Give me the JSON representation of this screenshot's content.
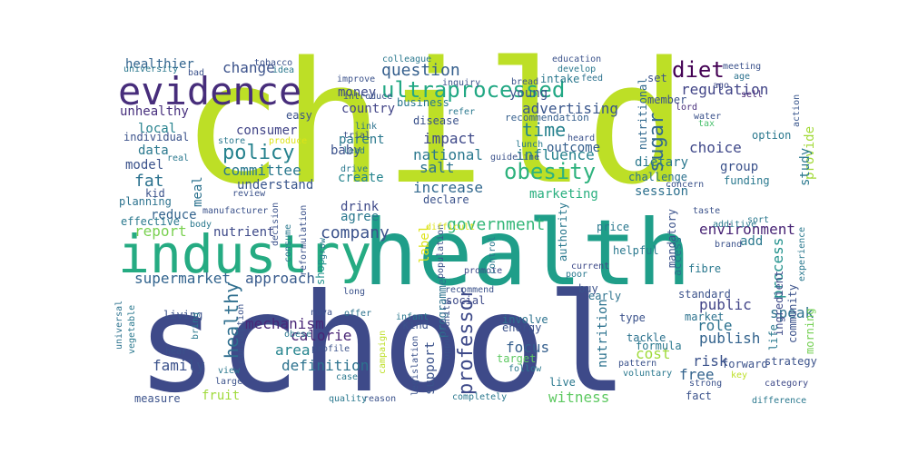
{
  "cloud": {
    "words": [
      {
        "text": "child",
        "color": "#bddf26"
      },
      {
        "text": "school",
        "color": "#3e4a89"
      },
      {
        "text": "health",
        "color": "#1f9e89"
      },
      {
        "text": "industry",
        "color": "#25ab82"
      },
      {
        "text": "evidence",
        "color": "#472d7b"
      },
      {
        "text": "ultraprocessed",
        "color": "#22a884"
      },
      {
        "text": "obesity",
        "color": "#2db27d"
      },
      {
        "text": "policy",
        "color": "#26828e"
      },
      {
        "text": "diet",
        "color": "#440154"
      },
      {
        "text": "sugar",
        "color": "#31688e"
      },
      {
        "text": "government",
        "color": "#35b779"
      },
      {
        "text": "company",
        "color": "#3b528b"
      },
      {
        "text": "question",
        "color": "#355f8d"
      },
      {
        "text": "time",
        "color": "#26828e"
      },
      {
        "text": "advertising",
        "color": "#39568c"
      },
      {
        "text": "healthy",
        "color": "#2e6e8e"
      },
      {
        "text": "professor",
        "color": "#3e4a89"
      },
      {
        "text": "environment",
        "color": "#482475"
      },
      {
        "text": "regulation",
        "color": "#414487"
      },
      {
        "text": "salt",
        "color": "#2c728e"
      },
      {
        "text": "change",
        "color": "#3b528b"
      },
      {
        "text": "committee",
        "color": "#2a788e"
      },
      {
        "text": "fat",
        "color": "#2c728e"
      },
      {
        "text": "report",
        "color": "#7ad151"
      },
      {
        "text": "supermarket",
        "color": "#32648e"
      },
      {
        "text": "approach",
        "color": "#375a8c"
      },
      {
        "text": "area",
        "color": "#25848e"
      },
      {
        "text": "calorie",
        "color": "#482475"
      },
      {
        "text": "definition",
        "color": "#2c728e"
      },
      {
        "text": "family",
        "color": "#3b528b"
      },
      {
        "text": "mechanism",
        "color": "#482677"
      },
      {
        "text": "influence",
        "color": "#26828e"
      },
      {
        "text": "national",
        "color": "#2a788e"
      },
      {
        "text": "increase",
        "color": "#31688e"
      },
      {
        "text": "marketing",
        "color": "#29af7f"
      },
      {
        "text": "impact",
        "color": "#3e4989"
      },
      {
        "text": "focus",
        "color": "#355f8d"
      },
      {
        "text": "support",
        "color": "#3b528b"
      },
      {
        "text": "nutrition",
        "color": "#2c728e"
      },
      {
        "text": "cost",
        "color": "#9fda3a"
      },
      {
        "text": "witness",
        "color": "#5ec962"
      },
      {
        "text": "risk",
        "color": "#3b528b"
      },
      {
        "text": "public",
        "color": "#414487"
      },
      {
        "text": "publish",
        "color": "#33638d"
      },
      {
        "text": "free",
        "color": "#33638d"
      },
      {
        "text": "role",
        "color": "#2c728e"
      },
      {
        "text": "speak",
        "color": "#2d708e"
      },
      {
        "text": "process",
        "color": "#21918c"
      },
      {
        "text": "provide",
        "color": "#a2da37"
      },
      {
        "text": "study",
        "color": "#2a788e"
      },
      {
        "text": "choice",
        "color": "#3f4889"
      },
      {
        "text": "group",
        "color": "#3b528b"
      },
      {
        "text": "session",
        "color": "#2d708e"
      },
      {
        "text": "dietary",
        "color": "#2a788e"
      },
      {
        "text": "outcome",
        "color": "#355f8d"
      },
      {
        "text": "young",
        "color": "#3b528b"
      },
      {
        "text": "money",
        "color": "#3e4a89"
      },
      {
        "text": "country",
        "color": "#414487"
      },
      {
        "text": "parent",
        "color": "#2a788e"
      },
      {
        "text": "create",
        "color": "#25848e"
      },
      {
        "text": "drink",
        "color": "#3e4a89"
      },
      {
        "text": "agree",
        "color": "#2a788e"
      },
      {
        "text": "understand",
        "color": "#39568c"
      },
      {
        "text": "consumer",
        "color": "#414487"
      },
      {
        "text": "nutrient",
        "color": "#3e4a89"
      },
      {
        "text": "reduce",
        "color": "#33638d"
      },
      {
        "text": "meal",
        "color": "#2c728e"
      },
      {
        "text": "data",
        "color": "#2a788e"
      },
      {
        "text": "model",
        "color": "#3b528b"
      },
      {
        "text": "local",
        "color": "#26828e"
      },
      {
        "text": "healthier",
        "color": "#32648e"
      },
      {
        "text": "unhealthy",
        "color": "#472f7d"
      },
      {
        "text": "baby",
        "color": "#3b528b"
      },
      {
        "text": "recommendation",
        "color": "#355f8d"
      },
      {
        "text": "member",
        "color": "#3b528b"
      },
      {
        "text": "set",
        "color": "#3b528b"
      },
      {
        "text": "nutritional",
        "color": "#31688e"
      },
      {
        "text": "challenge",
        "color": "#2c728e"
      },
      {
        "text": "funding",
        "color": "#2a788e"
      },
      {
        "text": "fruit",
        "color": "#9fda3a"
      },
      {
        "text": "add",
        "color": "#2a788e"
      },
      {
        "text": "shop",
        "color": "#21918c"
      },
      {
        "text": "label",
        "color": "#dde318"
      },
      {
        "text": "meeting",
        "color": "#3b528b"
      },
      {
        "text": "age",
        "color": "#2c728e"
      },
      {
        "text": "water",
        "color": "#3b528b"
      },
      {
        "text": "tax",
        "color": "#4ac16d"
      },
      {
        "text": "lord",
        "color": "#472d7b"
      },
      {
        "text": "sell",
        "color": "#482475"
      },
      {
        "text": "ago",
        "color": "#3e4a89"
      },
      {
        "text": "option",
        "color": "#2a788e"
      },
      {
        "text": "action",
        "color": "#39568c"
      },
      {
        "text": "taste",
        "color": "#3b528b"
      },
      {
        "text": "additive",
        "color": "#2a788e"
      },
      {
        "text": "sort",
        "color": "#2a788e"
      },
      {
        "text": "brand",
        "color": "#3b528b"
      },
      {
        "text": "experience",
        "color": "#2a788e"
      },
      {
        "text": "ingredient",
        "color": "#3e4a89"
      },
      {
        "text": "community",
        "color": "#3b528b"
      },
      {
        "text": "morning",
        "color": "#75d054"
      },
      {
        "text": "life",
        "color": "#2a788e"
      },
      {
        "text": "strategy",
        "color": "#3b528b"
      },
      {
        "text": "forward",
        "color": "#3b528b"
      },
      {
        "text": "category",
        "color": "#3e4a89"
      },
      {
        "text": "difference",
        "color": "#2a788e"
      },
      {
        "text": "key",
        "color": "#bddf26"
      },
      {
        "text": "market",
        "color": "#2c728e"
      },
      {
        "text": "formula",
        "color": "#2a788e"
      },
      {
        "text": "tackle",
        "color": "#2c728e"
      },
      {
        "text": "type",
        "color": "#3b528b"
      },
      {
        "text": "standard",
        "color": "#3b528b"
      },
      {
        "text": "fibre",
        "color": "#2a788e"
      },
      {
        "text": "access",
        "color": "#2c728e"
      },
      {
        "text": "mandatory",
        "color": "#3b528b"
      },
      {
        "text": "helpful",
        "color": "#2a788e"
      },
      {
        "text": "price",
        "color": "#2a788e"
      },
      {
        "text": "early",
        "color": "#2c728e"
      },
      {
        "text": "buy",
        "color": "#3b528b"
      },
      {
        "text": "authority",
        "color": "#2a788e"
      },
      {
        "text": "poor",
        "color": "#2a788e"
      },
      {
        "text": "current",
        "color": "#3e4a89"
      },
      {
        "text": "voluntary",
        "color": "#2a788e"
      },
      {
        "text": "pattern",
        "color": "#3b528b"
      },
      {
        "text": "strong",
        "color": "#3b528b"
      },
      {
        "text": "fact",
        "color": "#3b528b"
      },
      {
        "text": "live",
        "color": "#2a788e"
      },
      {
        "text": "energy",
        "color": "#3b528b"
      },
      {
        "text": "involve",
        "color": "#2c728e"
      },
      {
        "text": "target",
        "color": "#5ec962"
      },
      {
        "text": "follow",
        "color": "#2a788e"
      },
      {
        "text": "completely",
        "color": "#2a788e"
      },
      {
        "text": "social",
        "color": "#3e4a89"
      },
      {
        "text": "kind",
        "color": "#3b528b"
      },
      {
        "text": "infant",
        "color": "#2a788e"
      },
      {
        "text": "programme",
        "color": "#2c728e"
      },
      {
        "text": "opportunity",
        "color": "#3b528b"
      },
      {
        "text": "legislation",
        "color": "#3b528b"
      },
      {
        "text": "recommend",
        "color": "#3b528b"
      },
      {
        "text": "promote",
        "color": "#3e4a89"
      },
      {
        "text": "control",
        "color": "#2a788e"
      },
      {
        "text": "population",
        "color": "#3b528b"
      },
      {
        "text": "campaign",
        "color": "#bddf26"
      },
      {
        "text": "reason",
        "color": "#3b528b"
      },
      {
        "text": "quality",
        "color": "#2a788e"
      },
      {
        "text": "case",
        "color": "#2a788e"
      },
      {
        "text": "large",
        "color": "#3b528b"
      },
      {
        "text": "view",
        "color": "#2a788e"
      },
      {
        "text": "profile",
        "color": "#3b528b"
      },
      {
        "text": "obese",
        "color": "#2a788e"
      },
      {
        "text": "nova",
        "color": "#3b528b"
      },
      {
        "text": "offer",
        "color": "#2c728e"
      },
      {
        "text": "long",
        "color": "#3b528b"
      },
      {
        "text": "living",
        "color": "#3b528b"
      },
      {
        "text": "bring",
        "color": "#2a788e"
      },
      {
        "text": "consumption",
        "color": "#3b528b"
      },
      {
        "text": "hear",
        "color": "#3b528b"
      },
      {
        "text": "vegetable",
        "color": "#2a788e"
      },
      {
        "text": "universal",
        "color": "#2c728e"
      },
      {
        "text": "measure",
        "color": "#3b528b"
      },
      {
        "text": "effective",
        "color": "#2a788e"
      },
      {
        "text": "body",
        "color": "#2a788e"
      },
      {
        "text": "planning",
        "color": "#2c728e"
      },
      {
        "text": "kid",
        "color": "#3b528b"
      },
      {
        "text": "real",
        "color": "#2a788e"
      },
      {
        "text": "individual",
        "color": "#3b528b"
      },
      {
        "text": "store",
        "color": "#2a788e"
      },
      {
        "text": "produce",
        "color": "#dde318"
      },
      {
        "text": "review",
        "color": "#3b528b"
      },
      {
        "text": "manufacturer",
        "color": "#3b528b"
      },
      {
        "text": "decision",
        "color": "#3b528b"
      },
      {
        "text": "consume",
        "color": "#2a788e"
      },
      {
        "text": "grow",
        "color": "#2a788e"
      },
      {
        "text": "reformulation",
        "color": "#3b528b"
      },
      {
        "text": "drive",
        "color": "#2a788e"
      },
      {
        "text": "declare",
        "color": "#3b528b"
      },
      {
        "text": "lead",
        "color": "#2a788e"
      },
      {
        "text": "trial",
        "color": "#3b528b"
      },
      {
        "text": "link",
        "color": "#2c728e"
      },
      {
        "text": "difficult",
        "color": "#dde318"
      },
      {
        "text": "guideline",
        "color": "#3b528b"
      },
      {
        "text": "lunch",
        "color": "#2a788e"
      },
      {
        "text": "heard",
        "color": "#3b528b"
      },
      {
        "text": "concern",
        "color": "#3b528b"
      },
      {
        "text": "disease",
        "color": "#3b528b"
      },
      {
        "text": "easy",
        "color": "#3b528b"
      },
      {
        "text": "business",
        "color": "#2a788e"
      },
      {
        "text": "introduce",
        "color": "#3b528b"
      },
      {
        "text": "improve",
        "color": "#3b528b"
      },
      {
        "text": "colleague",
        "color": "#2a788e"
      },
      {
        "text": "inquiry",
        "color": "#3b528b"
      },
      {
        "text": "refer",
        "color": "#2a788e"
      },
      {
        "text": "bread",
        "color": "#3b528b"
      },
      {
        "text": "intake",
        "color": "#2a788e"
      },
      {
        "text": "education",
        "color": "#3b528b"
      },
      {
        "text": "develop",
        "color": "#2a788e"
      },
      {
        "text": "feed",
        "color": "#2c728e"
      },
      {
        "text": "tobacco",
        "color": "#3b528b"
      },
      {
        "text": "university",
        "color": "#2a788e"
      },
      {
        "text": "bad",
        "color": "#3b528b"
      },
      {
        "text": "idea",
        "color": "#2a788e"
      }
    ]
  }
}
